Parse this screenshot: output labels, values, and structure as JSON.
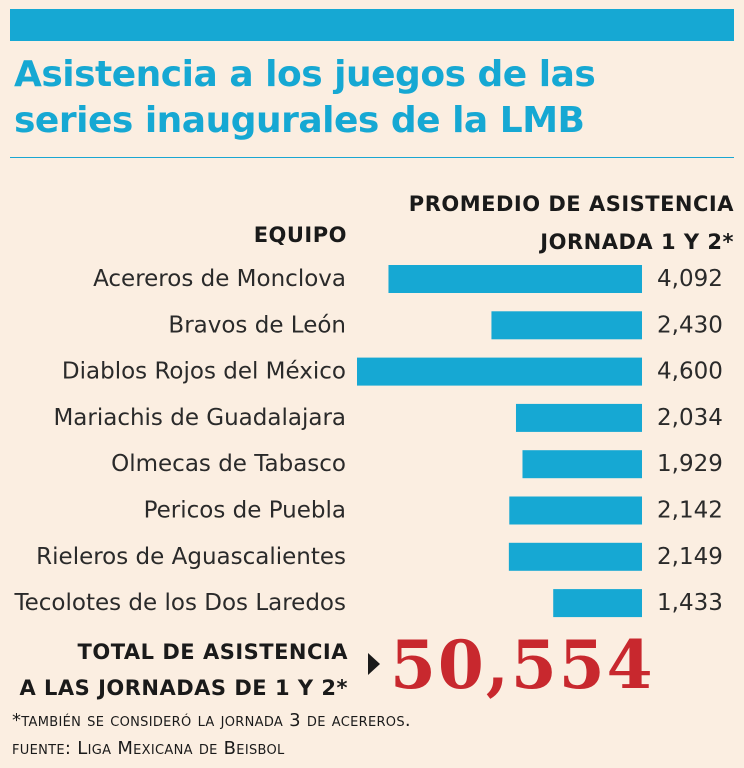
{
  "title_line1": "Asistencia a los juegos de las",
  "title_line2": "series inaugurales de la LMB",
  "header": {
    "team": "EQUIPO",
    "avg_line1": "PROMEDIO DE ASISTENCIA",
    "avg_line2": "JORNADA 1 Y 2*"
  },
  "chart_data": {
    "type": "bar",
    "orientation": "horizontal",
    "title": "Asistencia a los juegos de las series inaugurales de la LMB",
    "xlabel": "PROMEDIO DE ASISTENCIA JORNADA 1 Y 2*",
    "ylabel": "EQUIPO",
    "categories": [
      "Acereros de Monclova",
      "Bravos de León",
      "Diablos Rojos del México",
      "Mariachis de Guadalajara",
      "Olmecas de Tabasco",
      "Pericos de Puebla",
      "Rieleros de Aguascalientes",
      "Tecolotes de los Dos Laredos"
    ],
    "values": [
      4092,
      2430,
      4600,
      2034,
      1929,
      2142,
      2149,
      1433
    ],
    "value_labels": [
      "4,092",
      "2,430",
      "4,600",
      "2,034",
      "1,929",
      "2,142",
      "2,149",
      "1,433"
    ],
    "xlim": [
      0,
      4600
    ],
    "bar_color": "#16a8d3"
  },
  "total": {
    "label_line1": "TOTAL DE ASISTENCIA",
    "label_line2": "A LAS JORNADAS DE 1 Y 2*",
    "value": "50,554"
  },
  "footnotes": {
    "note": "*también se consideró la jornada 3 de acereros.",
    "source": "fuente: Liga Mexicana de Beisbol"
  },
  "colors": {
    "accent": "#16a8d3",
    "total": "#c8282e",
    "background": "#fbeee1"
  }
}
